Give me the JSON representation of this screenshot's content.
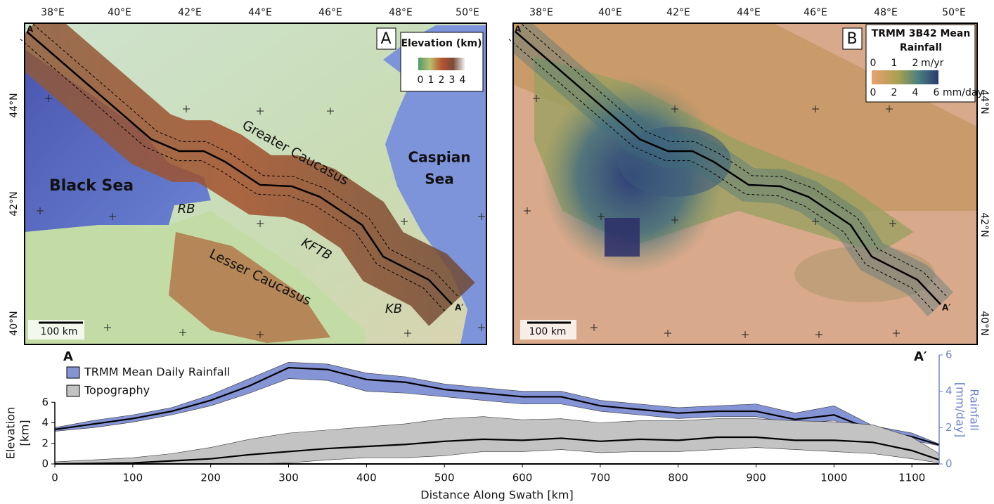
{
  "maps": [
    {
      "panel": "A",
      "lon_labels": [
        "38°E",
        "40°E",
        "42°E",
        "44°E",
        "46°E",
        "48°E",
        "50°E"
      ],
      "lat_labels": [
        "44°N",
        "42°N",
        "40°N"
      ],
      "start": "A",
      "end": "A′",
      "scale": "100 km",
      "legend": {
        "title": "Elevation (km)",
        "ticks": [
          0,
          1,
          2,
          3,
          4
        ]
      },
      "labels": {
        "black_sea": "Black Sea",
        "caspian_sea": [
          "Caspian",
          "Sea"
        ],
        "greater": "Greater Caucasus",
        "lesser": "Lesser Caucasus",
        "rb": "RB",
        "kftb": "KFTB",
        "kb": "KB"
      }
    },
    {
      "panel": "B",
      "lon_labels": [
        "38°E",
        "40°E",
        "42°E",
        "44°E",
        "46°E",
        "48°E",
        "50°E"
      ],
      "lat_labels": [
        "44°N",
        "42°N",
        "40°N"
      ],
      "start": "A",
      "end": "A′",
      "scale": "100 km",
      "legend": {
        "title": [
          "TRMM 3B42 Mean",
          "Rainfall"
        ],
        "top_ticks": [
          0,
          1,
          2
        ],
        "top_unit": "m/yr",
        "bottom_ticks": [
          0,
          2,
          4,
          6
        ],
        "bottom_unit": "mm/day"
      }
    }
  ],
  "chart_data": {
    "type": "line",
    "start": "A",
    "end": "A′",
    "xlabel": "Distance Along Swath [km]",
    "ylabel": [
      "Elevation",
      "[km]"
    ],
    "y2label": [
      "Rainfall",
      "[mm/day]"
    ],
    "x": [
      0,
      50,
      100,
      150,
      200,
      250,
      300,
      350,
      400,
      450,
      500,
      550,
      600,
      650,
      700,
      750,
      800,
      850,
      900,
      950,
      1000,
      1050,
      1100,
      1135
    ],
    "xlim": [
      0,
      1135
    ],
    "xticks": [
      0,
      100,
      200,
      300,
      400,
      500,
      600,
      700,
      800,
      900,
      1000,
      1100
    ],
    "ylim": [
      0,
      10.6
    ],
    "yticks": [
      0,
      2,
      4,
      6
    ],
    "y2lim": [
      0,
      6
    ],
    "y2ticks": [
      0,
      2,
      4,
      6
    ],
    "y2color": "#6f83c9",
    "series": [
      {
        "name": "TRMM Mean Daily Rainfall",
        "color": "#8594d4",
        "line_color": "#000000",
        "axis": "y2",
        "values": [
          1.9,
          2.2,
          2.5,
          2.9,
          3.5,
          4.3,
          5.3,
          5.2,
          4.65,
          4.5,
          4.1,
          3.9,
          3.7,
          3.7,
          3.2,
          3.0,
          2.8,
          2.9,
          2.9,
          2.45,
          2.7,
          1.85,
          1.5,
          1.05
        ],
        "min": [
          1.8,
          2.0,
          2.3,
          2.7,
          3.2,
          3.9,
          4.7,
          4.6,
          4.0,
          3.9,
          3.7,
          3.5,
          3.3,
          3.3,
          2.9,
          2.7,
          2.5,
          2.6,
          2.6,
          2.2,
          2.4,
          1.6,
          1.3,
          1.0
        ],
        "max": [
          2.0,
          2.4,
          2.7,
          3.1,
          3.8,
          4.7,
          5.6,
          5.5,
          5.0,
          4.8,
          4.4,
          4.2,
          4.0,
          4.0,
          3.5,
          3.3,
          3.1,
          3.2,
          3.3,
          2.8,
          3.2,
          2.1,
          1.7,
          1.1
        ]
      },
      {
        "name": "Topography",
        "color": "#c3c3c3",
        "line_color": "#000000",
        "values": [
          0,
          0.05,
          0.1,
          0.3,
          0.5,
          0.9,
          1.2,
          1.5,
          1.7,
          1.9,
          2.2,
          2.4,
          2.3,
          2.5,
          2.2,
          2.4,
          2.3,
          2.6,
          2.6,
          2.3,
          2.3,
          2.1,
          1.3,
          0.4
        ],
        "min": [
          0,
          0,
          0,
          0,
          0,
          0,
          0.1,
          0.4,
          0.6,
          0.6,
          0.8,
          1.2,
          1.2,
          1.4,
          1.1,
          1.2,
          1.2,
          1.4,
          1.6,
          1.4,
          1.2,
          1.0,
          0.5,
          0.1
        ],
        "max": [
          0.2,
          0.4,
          0.6,
          1.0,
          1.6,
          2.4,
          3.0,
          3.3,
          3.6,
          3.9,
          4.4,
          4.6,
          4.3,
          4.4,
          4.0,
          4.2,
          4.2,
          4.4,
          4.4,
          4.2,
          4.1,
          3.8,
          2.6,
          1.0
        ]
      }
    ]
  }
}
